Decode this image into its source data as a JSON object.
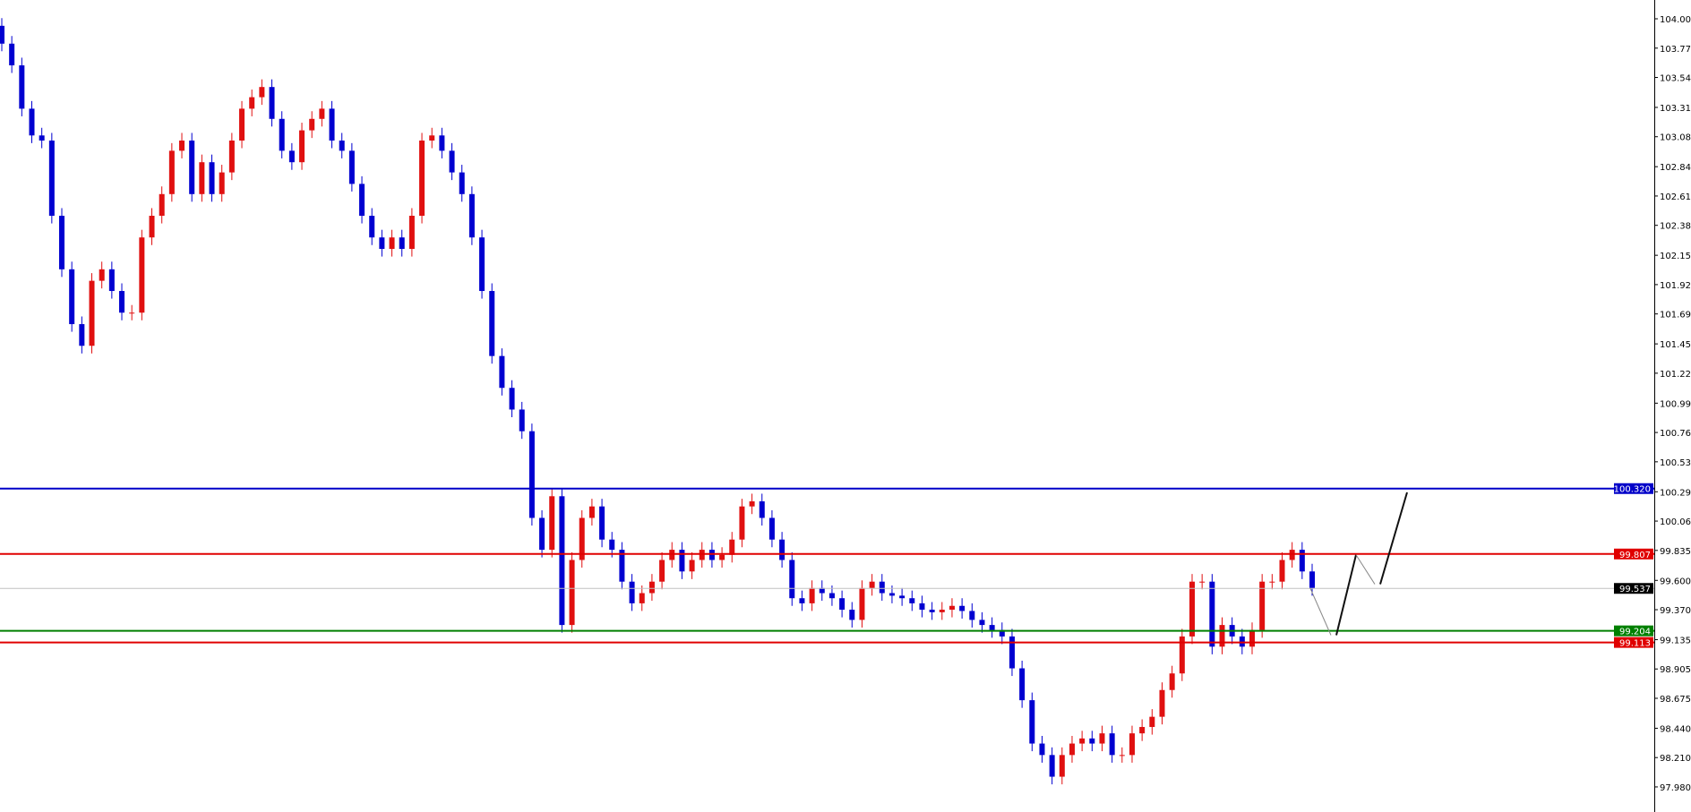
{
  "chart_data": {
    "type": "candlestick",
    "title": "",
    "xlabel": "",
    "ylabel": "",
    "ylim": [
      97.83,
      104.15
    ],
    "grid": false,
    "colors": {
      "bull": "#e01010",
      "bear": "#0000d0",
      "axis": "#000000"
    },
    "y_ticks": [
      "104.005",
      "103.775",
      "103.545",
      "103.310",
      "103.080",
      "102.845",
      "102.615",
      "102.385",
      "102.150",
      "101.920",
      "101.690",
      "101.455",
      "101.225",
      "100.990",
      "100.760",
      "100.530",
      "100.295",
      "100.065",
      "99.835",
      "99.600",
      "99.370",
      "99.135",
      "98.905",
      "98.675",
      "98.440",
      "98.210",
      "97.980"
    ],
    "first_open": 103.95,
    "closes": [
      103.81,
      103.64,
      103.3,
      103.09,
      103.05,
      102.46,
      102.04,
      101.61,
      101.44,
      101.95,
      102.04,
      101.87,
      101.7,
      101.7,
      102.29,
      102.46,
      102.63,
      102.97,
      103.05,
      102.63,
      102.88,
      102.63,
      102.8,
      103.05,
      103.3,
      103.39,
      103.47,
      103.22,
      102.97,
      102.88,
      103.13,
      103.22,
      103.3,
      103.05,
      102.97,
      102.71,
      102.46,
      102.29,
      102.2,
      102.29,
      102.2,
      102.46,
      103.05,
      103.09,
      102.97,
      102.8,
      102.63,
      102.29,
      101.87,
      101.36,
      101.11,
      100.94,
      100.77,
      100.09,
      99.84,
      100.26,
      99.25,
      99.76,
      100.09,
      100.18,
      99.92,
      99.84,
      99.59,
      99.42,
      99.5,
      99.59,
      99.76,
      99.84,
      99.67,
      99.76,
      99.84,
      99.76,
      99.8,
      99.92,
      100.18,
      100.22,
      100.09,
      99.92,
      99.76,
      99.46,
      99.42,
      99.54,
      99.5,
      99.46,
      99.37,
      99.29,
      99.54,
      99.59,
      99.5,
      99.48,
      99.46,
      99.42,
      99.37,
      99.35,
      99.37,
      99.4,
      99.36,
      99.29,
      99.25,
      99.21,
      99.16,
      98.91,
      98.66,
      98.32,
      98.23,
      98.06,
      98.23,
      98.32,
      98.36,
      98.32,
      98.4,
      98.23,
      98.23,
      98.4,
      98.45,
      98.53,
      98.74,
      98.87,
      99.16,
      99.59,
      99.59,
      99.08,
      99.25,
      99.16,
      99.08,
      99.21,
      99.59,
      99.59,
      99.76,
      99.84,
      99.67,
      99.54
    ],
    "levels": [
      {
        "price": 100.32,
        "label": "100.320",
        "color": "#0000c8"
      },
      {
        "price": 99.807,
        "label": "99.807",
        "color": "#e00000"
      },
      {
        "price": 99.204,
        "label": "99.204",
        "color": "#008000"
      },
      {
        "price": 99.113,
        "label": "99.113",
        "color": "#e00000"
      }
    ],
    "current_price": {
      "price": 99.537,
      "label": "99.537",
      "color": "#000000"
    },
    "projection_path": [
      99.537,
      99.17,
      99.8,
      99.57,
      100.29
    ]
  }
}
